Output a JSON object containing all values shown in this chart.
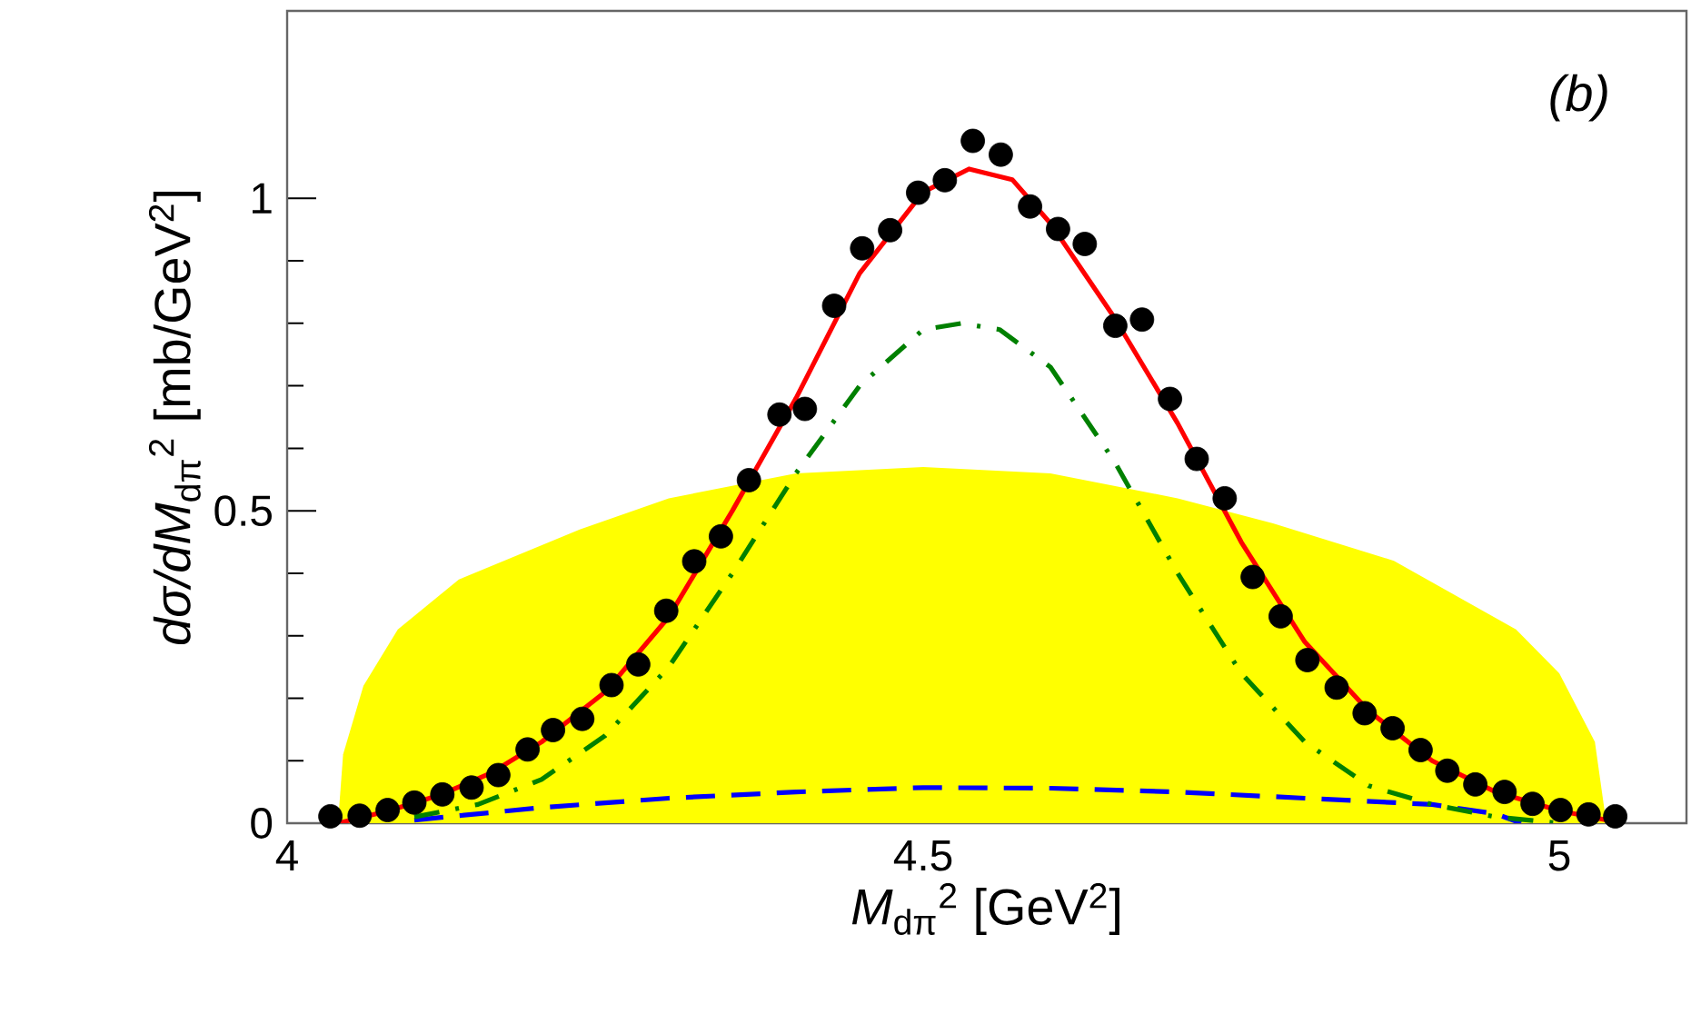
{
  "chart_data": {
    "type": "line",
    "xlabel": "*M*$_{dπ}$$^{2}$ [GeV$^{2}$]",
    "ylabel": "*dσ/dM*$_{dπ}$$^{2}$ [mb/GeV$^{2}$]",
    "annotations": [
      "*(b)*"
    ],
    "xlim": [
      4,
      5.1
    ],
    "ylim": [
      0,
      1.3
    ],
    "xticks": [
      4,
      4.5,
      5
    ],
    "yticks": [
      0,
      0.5,
      1
    ],
    "series": [
      {
        "type": "area",
        "color": "#ffff00",
        "x": [
          4.04,
          4.044,
          4.06,
          4.087,
          4.135,
          4.23,
          4.3,
          4.4,
          4.5,
          4.6,
          4.7,
          4.775,
          4.87,
          4.966,
          5.0,
          5.028,
          5.037
        ],
        "values": [
          0,
          0.11,
          0.22,
          0.31,
          0.39,
          0.47,
          0.52,
          0.56,
          0.57,
          0.56,
          0.52,
          0.48,
          0.42,
          0.31,
          0.24,
          0.13,
          0
        ]
      },
      {
        "color": "#0000ff",
        "line_style": "dashed",
        "x": [
          4.1,
          4.2,
          4.3,
          4.4,
          4.5,
          4.6,
          4.7,
          4.8,
          4.9,
          4.95,
          4.97
        ],
        "values": [
          0.005,
          0.025,
          0.04,
          0.05,
          0.057,
          0.056,
          0.05,
          0.04,
          0.03,
          0.015,
          0
        ]
      },
      {
        "color": "#008000",
        "line_style": "dashdot",
        "x": [
          4.1,
          4.15,
          4.2,
          4.25,
          4.3,
          4.35,
          4.4,
          4.45,
          4.5,
          4.53,
          4.56,
          4.6,
          4.65,
          4.7,
          4.75,
          4.8,
          4.85,
          4.9,
          4.95,
          5.0
        ],
        "values": [
          0.01,
          0.03,
          0.07,
          0.14,
          0.25,
          0.4,
          0.56,
          0.7,
          0.79,
          0.8,
          0.79,
          0.73,
          0.58,
          0.4,
          0.24,
          0.13,
          0.06,
          0.03,
          0.01,
          0
        ]
      },
      {
        "color": "#ff0000",
        "line_style": "solid",
        "x": [
          4.04,
          4.08,
          4.12,
          4.16,
          4.2,
          4.25,
          4.3,
          4.35,
          4.4,
          4.45,
          4.5,
          4.536,
          4.57,
          4.6,
          4.65,
          4.7,
          4.75,
          4.8,
          4.85,
          4.9,
          4.95,
          5.0,
          5.05
        ],
        "values": [
          0,
          0.02,
          0.045,
          0.08,
          0.13,
          0.21,
          0.33,
          0.5,
          0.68,
          0.88,
          1.01,
          1.047,
          1.03,
          0.96,
          0.81,
          0.64,
          0.45,
          0.29,
          0.18,
          0.1,
          0.05,
          0.02,
          0
        ]
      },
      {
        "type": "scatter",
        "color": "#000000",
        "marker": "circle",
        "x": [
          4.034,
          4.057,
          4.079,
          4.1,
          4.122,
          4.145,
          4.166,
          4.189,
          4.209,
          4.232,
          4.255,
          4.276,
          4.298,
          4.32,
          4.341,
          4.363,
          4.387,
          4.407,
          4.43,
          4.452,
          4.474,
          4.496,
          4.517,
          4.539,
          4.561,
          4.584,
          4.606,
          4.627,
          4.651,
          4.672,
          4.694,
          4.715,
          4.737,
          4.759,
          4.781,
          4.802,
          4.825,
          4.847,
          4.869,
          4.891,
          4.912,
          4.934,
          4.957,
          4.979,
          5.001,
          5.023,
          5.044
        ],
        "values": [
          0.011,
          0.012,
          0.021,
          0.033,
          0.046,
          0.057,
          0.077,
          0.118,
          0.149,
          0.167,
          0.221,
          0.254,
          0.34,
          0.419,
          0.459,
          0.549,
          0.654,
          0.663,
          0.828,
          0.92,
          0.949,
          1.009,
          1.029,
          1.092,
          1.07,
          0.987,
          0.951,
          0.927,
          0.796,
          0.806,
          0.679,
          0.583,
          0.52,
          0.394,
          0.331,
          0.261,
          0.217,
          0.176,
          0.152,
          0.117,
          0.084,
          0.062,
          0.05,
          0.031,
          0.021,
          0.014,
          0.011
        ]
      }
    ]
  }
}
